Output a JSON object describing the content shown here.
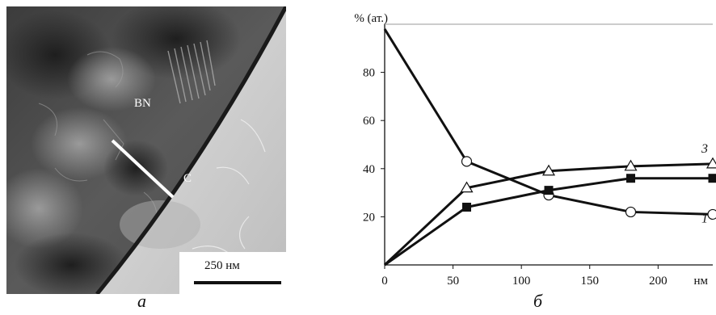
{
  "panel_a": {
    "caption": "a",
    "label_bn": "BN",
    "label_c": "C",
    "scale_bar": "250 нм"
  },
  "panel_b": {
    "caption": "б"
  },
  "chart_data": {
    "type": "line",
    "ylabel": "% (ат.)",
    "xlabel": "нм",
    "xlim": [
      0,
      240
    ],
    "ylim": [
      0,
      100
    ],
    "x_ticks": [
      "0",
      "50",
      "100",
      "150",
      "200"
    ],
    "y_ticks": [
      "20",
      "40",
      "60",
      "80"
    ],
    "grid": false,
    "series": [
      {
        "name": "1",
        "marker": "open-circle",
        "x": [
          0,
          60,
          120,
          180,
          240
        ],
        "y": [
          98,
          43,
          29,
          22,
          21
        ]
      },
      {
        "name": "",
        "marker": "filled-square",
        "x": [
          0,
          60,
          120,
          180,
          240
        ],
        "y": [
          0,
          24,
          31,
          36,
          36
        ]
      },
      {
        "name": "3",
        "marker": "open-triangle",
        "x": [
          0,
          60,
          120,
          180,
          240
        ],
        "y": [
          0,
          32,
          39,
          41,
          42
        ]
      }
    ]
  }
}
